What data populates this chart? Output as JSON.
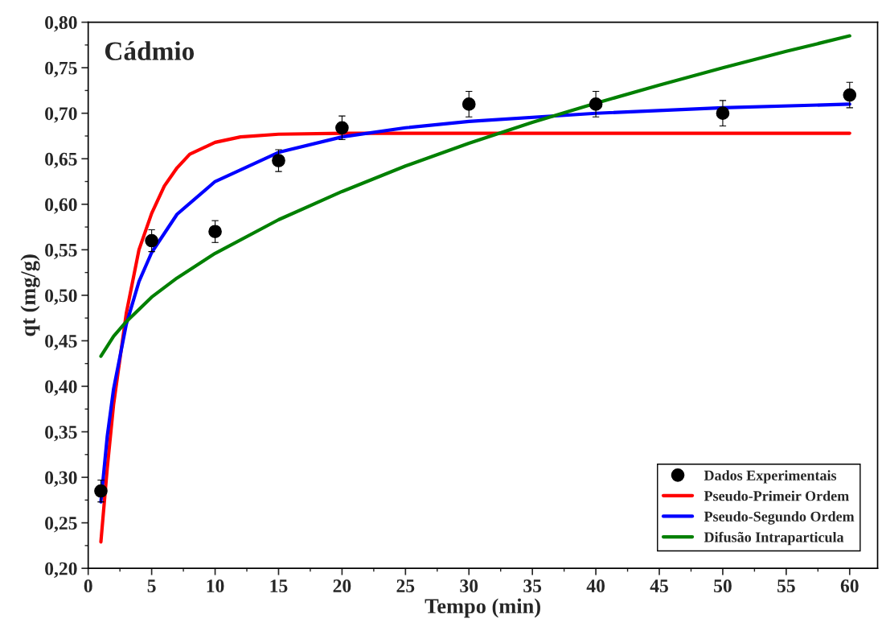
{
  "chart_data": {
    "type": "line",
    "xlabel": "Tempo (min)",
    "ylabel": "qt (mg/g)",
    "annotations": [
      "Cádmio"
    ],
    "xlim": [
      0,
      62.2
    ],
    "ylim": [
      0.2,
      0.8
    ],
    "xticks": [
      0,
      5,
      10,
      15,
      20,
      25,
      30,
      35,
      40,
      45,
      50,
      55,
      60
    ],
    "yticks": [
      {
        "value": 0.2,
        "label": "0,20"
      },
      {
        "value": 0.25,
        "label": "0,25"
      },
      {
        "value": 0.3,
        "label": "0,30"
      },
      {
        "value": 0.35,
        "label": "0,35"
      },
      {
        "value": 0.4,
        "label": "0,40"
      },
      {
        "value": 0.45,
        "label": "0,45"
      },
      {
        "value": 0.5,
        "label": "0,50"
      },
      {
        "value": 0.55,
        "label": "0,55"
      },
      {
        "value": 0.6,
        "label": "0,60"
      },
      {
        "value": 0.65,
        "label": "0,65"
      },
      {
        "value": 0.7,
        "label": "0,70"
      },
      {
        "value": 0.75,
        "label": "0,75"
      },
      {
        "value": 0.8,
        "label": "0,80"
      }
    ],
    "grid": false,
    "legend": "bottom right",
    "series": [
      {
        "name": "Dados Experimentais",
        "type": "scatter",
        "marker": "circle",
        "color": "#000000",
        "x": [
          1,
          5,
          10,
          15,
          20,
          30,
          40,
          50,
          60
        ],
        "values": [
          0.285,
          0.56,
          0.57,
          0.648,
          0.684,
          0.71,
          0.71,
          0.7,
          0.72
        ],
        "errors": [
          0.012,
          0.012,
          0.012,
          0.012,
          0.013,
          0.014,
          0.014,
          0.014,
          0.014
        ]
      },
      {
        "name": "Pseudo-Primeir Ordem",
        "color": "#ff0000",
        "x": [
          1,
          1.5,
          2,
          3,
          4,
          5,
          6,
          7,
          8,
          10,
          12,
          15,
          20,
          30,
          60
        ],
        "values": [
          0.229,
          0.31,
          0.38,
          0.48,
          0.55,
          0.59,
          0.62,
          0.64,
          0.655,
          0.668,
          0.674,
          0.677,
          0.678,
          0.678,
          0.678
        ]
      },
      {
        "name": "Pseudo-Segundo Ordem",
        "color": "#0000ff",
        "x": [
          1,
          1.5,
          2,
          3,
          4,
          5,
          7,
          10,
          15,
          20,
          25,
          30,
          40,
          50,
          60
        ],
        "values": [
          0.273,
          0.345,
          0.397,
          0.468,
          0.515,
          0.547,
          0.589,
          0.625,
          0.657,
          0.674,
          0.684,
          0.691,
          0.7,
          0.706,
          0.71
        ]
      },
      {
        "name": "Difusão Intraparticula",
        "color": "#008000",
        "x": [
          1,
          2,
          3,
          5,
          7,
          10,
          15,
          20,
          25,
          30,
          35,
          40,
          45,
          50,
          55,
          60
        ],
        "values": [
          0.433,
          0.455,
          0.471,
          0.498,
          0.519,
          0.546,
          0.583,
          0.614,
          0.642,
          0.667,
          0.69,
          0.711,
          0.731,
          0.75,
          0.768,
          0.785
        ]
      }
    ]
  }
}
